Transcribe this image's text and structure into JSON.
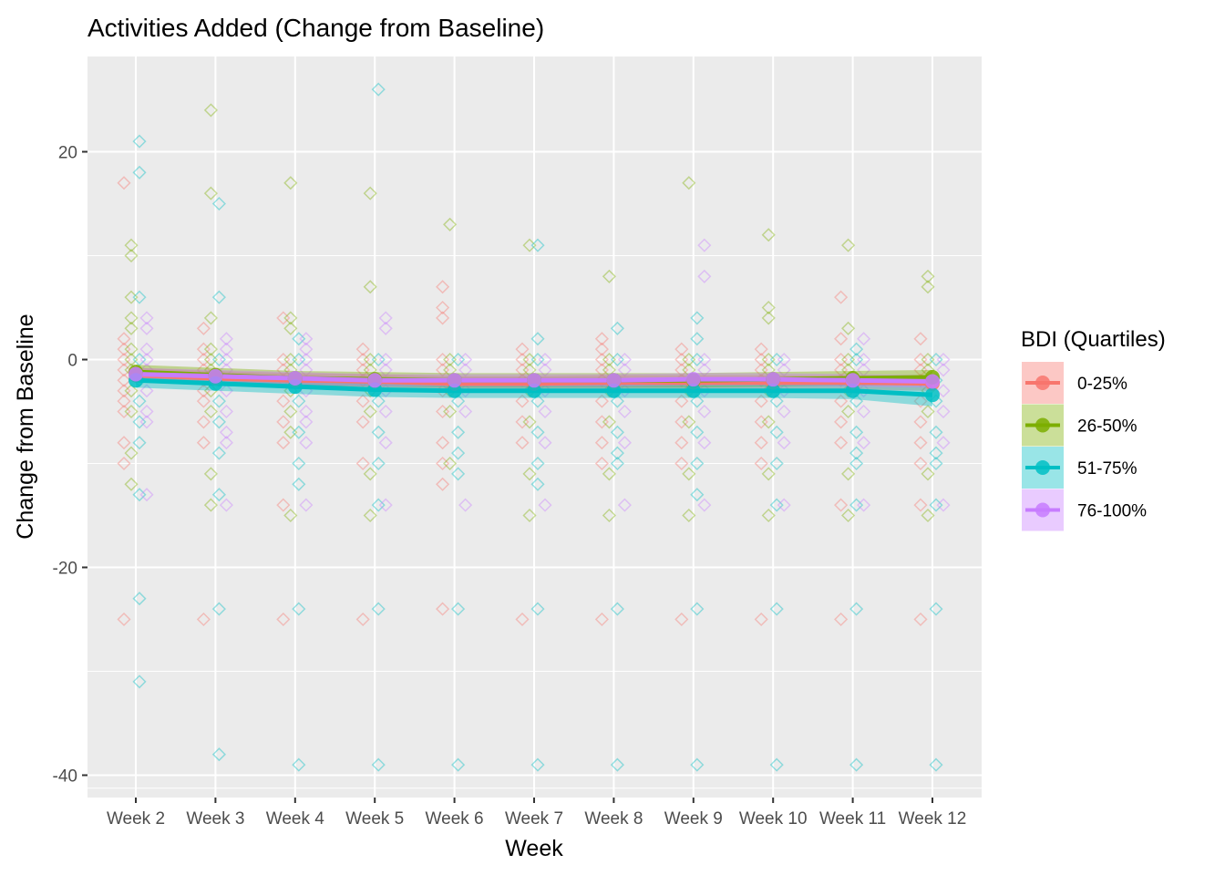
{
  "chart_data": {
    "type": "line",
    "title": "Activities Added (Change from Baseline)",
    "xlabel": "Week",
    "ylabel": "Change from Baseline",
    "categories": [
      "Week 2",
      "Week 3",
      "Week 4",
      "Week 5",
      "Week 6",
      "Week 7",
      "Week 8",
      "Week 9",
      "Week 10",
      "Week 11",
      "Week 12"
    ],
    "ylim": [
      -42.5,
      29
    ],
    "yticks": [
      -40,
      -20,
      0,
      20
    ],
    "grid": true,
    "legend": {
      "title": "BDI (Quartiles)",
      "placement": "right"
    },
    "series": [
      {
        "name": "0-25%",
        "color": "#F8766D",
        "mean": [
          -1.5,
          -1.8,
          -2.0,
          -2.1,
          -2.3,
          -2.3,
          -2.2,
          -2.2,
          -2.2,
          -2.2,
          -2.3
        ],
        "ci_low": [
          -2.2,
          -2.5,
          -2.7,
          -2.8,
          -3.0,
          -3.0,
          -2.9,
          -2.9,
          -2.9,
          -2.9,
          -3.0
        ],
        "ci_high": [
          -0.8,
          -1.1,
          -1.3,
          -1.4,
          -1.6,
          -1.6,
          -1.5,
          -1.5,
          -1.5,
          -1.5,
          -1.6
        ],
        "points": [
          [
            17,
            2,
            1,
            0,
            -1,
            -2,
            -3,
            -4,
            -5,
            -8,
            -10,
            -25
          ],
          [
            3,
            1,
            0,
            -1,
            -2,
            -3,
            -4,
            -6,
            -8,
            -25
          ],
          [
            4,
            0,
            -1,
            -2,
            -4,
            -6,
            -8,
            -14,
            -25
          ],
          [
            1,
            0,
            -1,
            -2,
            -4,
            -6,
            -10,
            -25
          ],
          [
            7,
            5,
            4,
            0,
            -1,
            -3,
            -5,
            -8,
            -10,
            -12,
            -24
          ],
          [
            1,
            0,
            -1,
            -2,
            -4,
            -6,
            -8,
            -25
          ],
          [
            2,
            1,
            0,
            -1,
            -2,
            -4,
            -6,
            -8,
            -10,
            -25
          ],
          [
            1,
            0,
            -1,
            -2,
            -4,
            -6,
            -8,
            -10,
            -25
          ],
          [
            1,
            0,
            -1,
            -2,
            -4,
            -6,
            -8,
            -10,
            -25
          ],
          [
            6,
            2,
            0,
            -1,
            -2,
            -4,
            -6,
            -8,
            -14,
            -25
          ],
          [
            2,
            0,
            -1,
            -2,
            -4,
            -6,
            -8,
            -10,
            -14,
            -25
          ]
        ]
      },
      {
        "name": "26-50%",
        "color": "#7CAE00",
        "mean": [
          -1.2,
          -1.5,
          -1.8,
          -1.9,
          -2.0,
          -2.0,
          -2.0,
          -2.0,
          -1.9,
          -1.8,
          -1.7
        ],
        "ci_low": [
          -1.9,
          -2.2,
          -2.5,
          -2.6,
          -2.7,
          -2.7,
          -2.7,
          -2.7,
          -2.6,
          -2.5,
          -2.4
        ],
        "ci_high": [
          -0.5,
          -0.8,
          -1.1,
          -1.2,
          -1.3,
          -1.3,
          -1.3,
          -1.3,
          -1.2,
          -1.1,
          -1.0
        ],
        "points": [
          [
            11,
            10,
            6,
            4,
            3,
            1,
            0,
            -1,
            -3,
            -5,
            -9,
            -12
          ],
          [
            24,
            16,
            4,
            1,
            0,
            -1,
            -3,
            -5,
            -11,
            -14
          ],
          [
            17,
            4,
            3,
            0,
            -1,
            -3,
            -5,
            -7,
            -15
          ],
          [
            16,
            7,
            0,
            -1,
            -3,
            -5,
            -11,
            -15
          ],
          [
            13,
            0,
            -1,
            -3,
            -5,
            -10
          ],
          [
            11,
            0,
            -1,
            -3,
            -6,
            -11,
            -15
          ],
          [
            8,
            0,
            -1,
            -3,
            -6,
            -11,
            -15
          ],
          [
            17,
            0,
            -1,
            -3,
            -6,
            -11,
            -15
          ],
          [
            12,
            5,
            4,
            0,
            -1,
            -3,
            -6,
            -11,
            -15
          ],
          [
            11,
            3,
            0,
            -1,
            -3,
            -5,
            -11,
            -15
          ],
          [
            8,
            7,
            0,
            -1,
            -3,
            -5,
            -11,
            -15
          ]
        ]
      },
      {
        "name": "51-75%",
        "color": "#00BFC4",
        "mean": [
          -2.0,
          -2.3,
          -2.6,
          -2.9,
          -3.0,
          -3.0,
          -3.0,
          -3.0,
          -3.0,
          -3.0,
          -3.4
        ],
        "ci_low": [
          -2.7,
          -3.0,
          -3.3,
          -3.6,
          -3.7,
          -3.7,
          -3.7,
          -3.7,
          -3.7,
          -3.8,
          -4.5
        ],
        "ci_high": [
          -1.3,
          -1.6,
          -1.9,
          -2.2,
          -2.3,
          -2.3,
          -2.3,
          -2.3,
          -2.3,
          -2.2,
          -2.3
        ],
        "points": [
          [
            21,
            18,
            6,
            0,
            -2,
            -4,
            -6,
            -8,
            -13,
            -23,
            -31
          ],
          [
            15,
            6,
            0,
            -2,
            -4,
            -6,
            -9,
            -13,
            -24,
            -38
          ],
          [
            2,
            0,
            -2,
            -4,
            -7,
            -10,
            -12,
            -24,
            -39
          ],
          [
            26,
            0,
            -2,
            -4,
            -7,
            -10,
            -14,
            -24,
            -39
          ],
          [
            0,
            -2,
            -4,
            -7,
            -9,
            -11,
            -24,
            -39
          ],
          [
            11,
            2,
            0,
            -2,
            -4,
            -7,
            -10,
            -12,
            -24,
            -39
          ],
          [
            3,
            0,
            -2,
            -4,
            -7,
            -9,
            -10,
            -24,
            -39
          ],
          [
            4,
            2,
            0,
            -2,
            -4,
            -7,
            -10,
            -13,
            -24,
            -39
          ],
          [
            0,
            -2,
            -4,
            -7,
            -10,
            -14,
            -24,
            -39
          ],
          [
            1,
            0,
            -2,
            -4,
            -7,
            -9,
            -10,
            -14,
            -24,
            -39
          ],
          [
            0,
            -2,
            -4,
            -7,
            -9,
            -10,
            -14,
            -24,
            -39
          ]
        ]
      },
      {
        "name": "76-100%",
        "color": "#C77CFF",
        "mean": [
          -1.4,
          -1.6,
          -1.8,
          -2.0,
          -2.0,
          -2.0,
          -2.0,
          -1.9,
          -1.9,
          -2.0,
          -2.1
        ],
        "ci_low": [
          -2.0,
          -2.2,
          -2.4,
          -2.6,
          -2.6,
          -2.6,
          -2.6,
          -2.5,
          -2.5,
          -2.6,
          -2.7
        ],
        "ci_high": [
          -0.8,
          -1.0,
          -1.2,
          -1.4,
          -1.4,
          -1.4,
          -1.4,
          -1.3,
          -1.3,
          -1.4,
          -1.5
        ],
        "points": [
          [
            4,
            3,
            1,
            0,
            -1,
            -3,
            -5,
            -6,
            -13
          ],
          [
            2,
            1,
            0,
            -1,
            -3,
            -5,
            -7,
            -8,
            -14
          ],
          [
            2,
            1,
            0,
            -1,
            -3,
            -5,
            -6,
            -8,
            -14
          ],
          [
            4,
            3,
            0,
            -1,
            -3,
            -5,
            -8,
            -14
          ],
          [
            0,
            -1,
            -3,
            -5,
            -14
          ],
          [
            0,
            -1,
            -3,
            -5,
            -8,
            -14
          ],
          [
            0,
            -1,
            -3,
            -5,
            -8,
            -14
          ],
          [
            11,
            8,
            0,
            -1,
            -3,
            -5,
            -8,
            -14
          ],
          [
            0,
            -1,
            -3,
            -5,
            -8,
            -14
          ],
          [
            2,
            0,
            -1,
            -3,
            -5,
            -8,
            -14
          ],
          [
            0,
            -1,
            -3,
            -5,
            -8,
            -14
          ]
        ]
      }
    ]
  }
}
